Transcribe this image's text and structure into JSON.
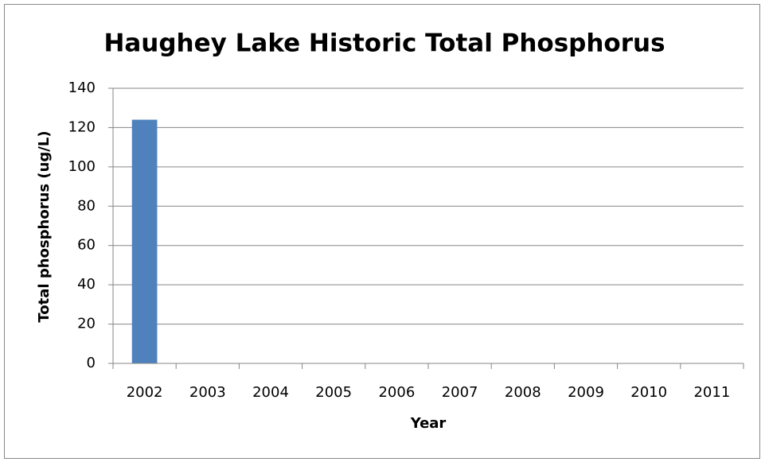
{
  "chart_data": {
    "type": "bar",
    "title": "Haughey Lake Historic Total Phosphorus",
    "x_label": "Year",
    "y_label": "Total phosphorus (ug/L)",
    "categories": [
      "2002",
      "2003",
      "2004",
      "2005",
      "2006",
      "2007",
      "2008",
      "2009",
      "2010",
      "2011"
    ],
    "values": [
      124,
      null,
      null,
      null,
      null,
      null,
      null,
      null,
      null,
      null
    ],
    "color": "#4f81bd",
    "ylim": [
      0,
      140
    ],
    "yticks": [
      0,
      20,
      40,
      60,
      80,
      100,
      120,
      140
    ],
    "grid": true
  }
}
